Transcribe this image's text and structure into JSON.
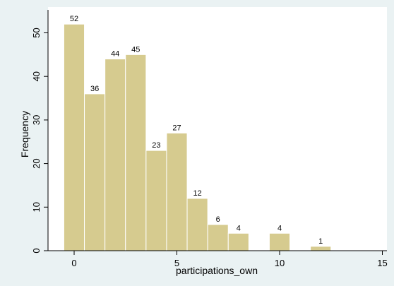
{
  "chart_data": {
    "type": "bar",
    "title": "",
    "xlabel": "participations_own",
    "ylabel": "Frequency",
    "xlim": [
      -1.5,
      15.5
    ],
    "ylim": [
      0,
      55
    ],
    "xticks": [
      0,
      5,
      10,
      15
    ],
    "yticks": [
      0,
      10,
      20,
      30,
      40,
      50
    ],
    "bin_width": 1.0,
    "bins": [
      {
        "x": 0,
        "value": 52
      },
      {
        "x": 1,
        "value": 36
      },
      {
        "x": 2,
        "value": 44
      },
      {
        "x": 3,
        "value": 45
      },
      {
        "x": 4,
        "value": 23
      },
      {
        "x": 5,
        "value": 27
      },
      {
        "x": 6,
        "value": 12
      },
      {
        "x": 7,
        "value": 6
      },
      {
        "x": 8,
        "value": 4
      },
      {
        "x": 10,
        "value": 4
      },
      {
        "x": 12,
        "value": 1
      }
    ],
    "grid": false,
    "legend": "none",
    "colors": {
      "bar_fill": "#d6cb8f",
      "bar_stroke": "#ffffff",
      "background": "#eaf2f3",
      "plot_background": "#ffffff"
    }
  }
}
